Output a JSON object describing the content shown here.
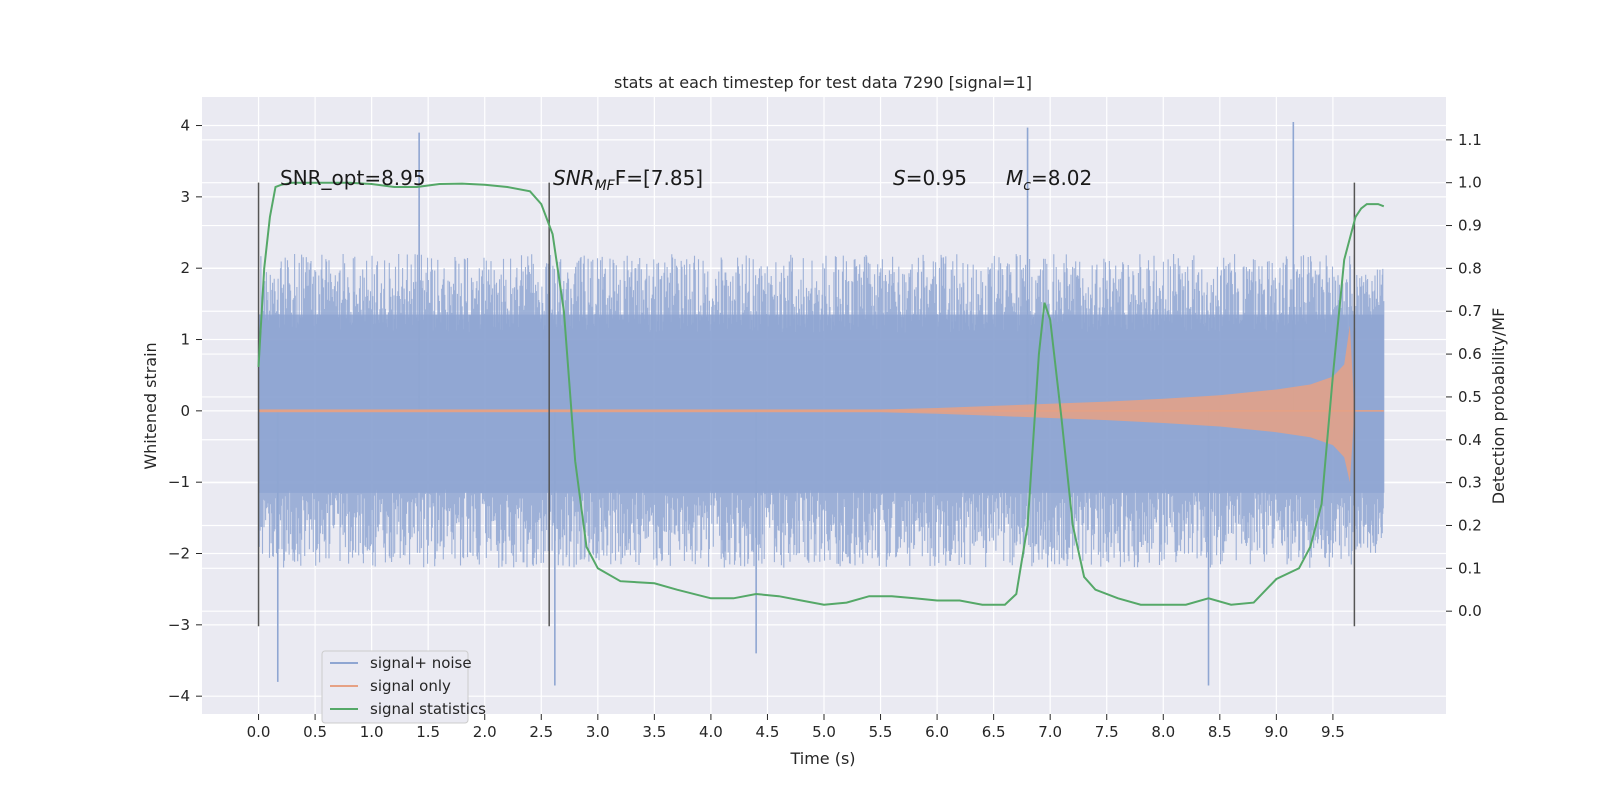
{
  "chart_data": {
    "type": "line",
    "title": "stats at each timestep for test data 7290 [signal=1]",
    "xlabel": "Time (s)",
    "ylabel": "Whitened strain",
    "ylabel_right": "Detection probability/MF",
    "xlim": [
      -0.5,
      10.5
    ],
    "ylim": [
      -4.25,
      4.4
    ],
    "ylim_right": [
      -0.24,
      1.2
    ],
    "grid": true,
    "legend_position": "lower-left",
    "xticks": [
      "0.0",
      "0.5",
      "1.0",
      "1.5",
      "2.0",
      "2.5",
      "3.0",
      "3.5",
      "4.0",
      "4.5",
      "5.0",
      "5.5",
      "6.0",
      "6.5",
      "7.0",
      "7.5",
      "8.0",
      "8.5",
      "9.0",
      "9.5"
    ],
    "yticks": [
      "4",
      "3",
      "2",
      "1",
      "0",
      "−1",
      "−2",
      "−3",
      "−4"
    ],
    "yticks_right": [
      "1.1",
      "1.0",
      "0.9",
      "0.8",
      "0.7",
      "0.6",
      "0.5",
      "0.4",
      "0.3",
      "0.2",
      "0.1",
      "0.0"
    ],
    "annotations": {
      "snr_opt": "SNR_opt=8.95",
      "snr_mf_main": "SNR",
      "snr_mf_sub": "MF",
      "snr_mf_tail": "F=[7.85]",
      "s_main": "S",
      "s_tail": "=0.95",
      "mc_main": "M",
      "mc_sub": "c",
      "mc_tail": "=8.02"
    },
    "vlines_x": [
      0.0,
      2.57,
      9.69
    ],
    "series": [
      {
        "name": "signal+ noise",
        "color": "#8fa6d2",
        "x_range": [
          0.0,
          9.69
        ],
        "envelope_hi": 2.0,
        "envelope_lo": -2.0,
        "peak_max": 4.05,
        "peak_min": -3.85,
        "peaks": [
          [
            0.17,
            -3.8
          ],
          [
            1.42,
            3.9
          ],
          [
            6.8,
            3.97
          ],
          [
            9.15,
            4.05
          ],
          [
            8.4,
            -3.85
          ],
          [
            4.4,
            -3.4
          ],
          [
            2.62,
            -3.85
          ]
        ]
      },
      {
        "name": "signal only",
        "color": "#e6a184",
        "x": [
          0.0,
          5.5,
          6.0,
          6.5,
          7.0,
          7.5,
          8.0,
          8.5,
          9.0,
          9.3,
          9.5,
          9.6,
          9.65,
          9.69
        ],
        "upper": [
          0.02,
          0.02,
          0.04,
          0.07,
          0.1,
          0.13,
          0.17,
          0.22,
          0.3,
          0.37,
          0.48,
          0.65,
          1.2,
          0.0
        ],
        "lower": [
          -0.02,
          -0.02,
          -0.04,
          -0.07,
          -0.1,
          -0.13,
          -0.17,
          -0.22,
          -0.3,
          -0.37,
          -0.48,
          -0.65,
          -1.0,
          0.0
        ]
      },
      {
        "name": "signal statistics",
        "color": "#55a868",
        "axis": "right",
        "x": [
          0.0,
          0.05,
          0.1,
          0.15,
          0.2,
          0.3,
          0.5,
          0.8,
          1.0,
          1.2,
          1.4,
          1.6,
          1.8,
          2.0,
          2.2,
          2.4,
          2.5,
          2.6,
          2.7,
          2.8,
          2.9,
          3.0,
          3.2,
          3.5,
          3.7,
          4.0,
          4.2,
          4.4,
          4.6,
          4.8,
          5.0,
          5.2,
          5.4,
          5.6,
          5.8,
          6.0,
          6.2,
          6.4,
          6.6,
          6.7,
          6.8,
          6.9,
          6.95,
          7.0,
          7.1,
          7.2,
          7.3,
          7.4,
          7.6,
          7.8,
          8.0,
          8.2,
          8.4,
          8.6,
          8.8,
          9.0,
          9.2,
          9.3,
          9.4,
          9.5,
          9.6,
          9.7,
          9.75,
          9.8,
          9.9,
          9.95
        ],
        "y": [
          0.57,
          0.8,
          0.92,
          0.99,
          0.995,
          1.0,
          1.0,
          1.0,
          0.997,
          0.99,
          0.99,
          0.997,
          0.998,
          0.995,
          0.99,
          0.98,
          0.95,
          0.88,
          0.7,
          0.35,
          0.15,
          0.1,
          0.07,
          0.065,
          0.05,
          0.03,
          0.03,
          0.04,
          0.035,
          0.025,
          0.015,
          0.02,
          0.035,
          0.035,
          0.03,
          0.025,
          0.025,
          0.015,
          0.015,
          0.04,
          0.2,
          0.6,
          0.72,
          0.68,
          0.45,
          0.2,
          0.08,
          0.05,
          0.03,
          0.015,
          0.015,
          0.015,
          0.03,
          0.015,
          0.02,
          0.075,
          0.1,
          0.15,
          0.25,
          0.55,
          0.82,
          0.92,
          0.94,
          0.95,
          0.95,
          0.945
        ]
      }
    ]
  }
}
